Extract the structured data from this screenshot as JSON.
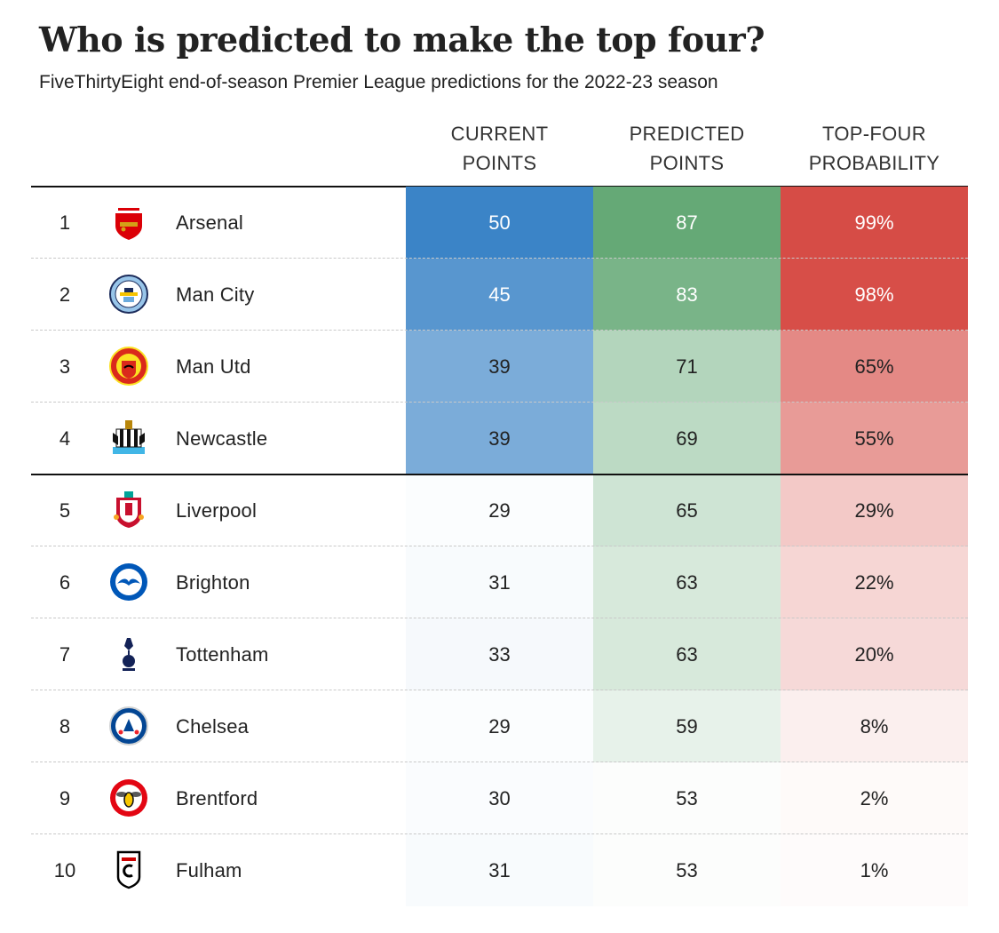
{
  "chart_data": {
    "type": "table",
    "title": "Who is predicted to make the top four?",
    "subtitle": "FiveThirtyEight end-of-season Premier League predictions for the 2022-23 season",
    "columns": [
      {
        "line1": "CURRENT",
        "line2": "POINTS"
      },
      {
        "line1": "PREDICTED",
        "line2": "POINTS"
      },
      {
        "line1": "TOP-FOUR",
        "line2": "PROBABILITY"
      }
    ],
    "rows": [
      {
        "rank": "1",
        "team": "Arsenal",
        "logo": "arsenal-crest-icon",
        "current_points": 50,
        "predicted_points": 87,
        "top_four": "99%",
        "top_four_value": 99
      },
      {
        "rank": "2",
        "team": "Man City",
        "logo": "man-city-crest-icon",
        "current_points": 45,
        "predicted_points": 83,
        "top_four": "98%",
        "top_four_value": 98
      },
      {
        "rank": "3",
        "team": "Man Utd",
        "logo": "man-utd-crest-icon",
        "current_points": 39,
        "predicted_points": 71,
        "top_four": "65%",
        "top_four_value": 65
      },
      {
        "rank": "4",
        "team": "Newcastle",
        "logo": "newcastle-crest-icon",
        "current_points": 39,
        "predicted_points": 69,
        "top_four": "55%",
        "top_four_value": 55
      },
      {
        "rank": "5",
        "team": "Liverpool",
        "logo": "liverpool-crest-icon",
        "current_points": 29,
        "predicted_points": 65,
        "top_four": "29%",
        "top_four_value": 29
      },
      {
        "rank": "6",
        "team": "Brighton",
        "logo": "brighton-crest-icon",
        "current_points": 31,
        "predicted_points": 63,
        "top_four": "22%",
        "top_four_value": 22
      },
      {
        "rank": "7",
        "team": "Tottenham",
        "logo": "tottenham-crest-icon",
        "current_points": 33,
        "predicted_points": 63,
        "top_four": "20%",
        "top_four_value": 20
      },
      {
        "rank": "8",
        "team": "Chelsea",
        "logo": "chelsea-crest-icon",
        "current_points": 29,
        "predicted_points": 59,
        "top_four": "8%",
        "top_four_value": 8
      },
      {
        "rank": "9",
        "team": "Brentford",
        "logo": "brentford-crest-icon",
        "current_points": 30,
        "predicted_points": 53,
        "top_four": "2%",
        "top_four_value": 2
      },
      {
        "rank": "10",
        "team": "Fulham",
        "logo": "fulham-crest-icon",
        "current_points": 31,
        "predicted_points": 53,
        "top_four": "1%",
        "top_four_value": 1
      }
    ],
    "cutoff_after_rank": 4,
    "colors": {
      "current_points": "#3b84c7",
      "predicted_points": "#65a976",
      "top_four": "#d64a44",
      "text_dark": "#222222",
      "text_light": "#ffffff"
    }
  }
}
